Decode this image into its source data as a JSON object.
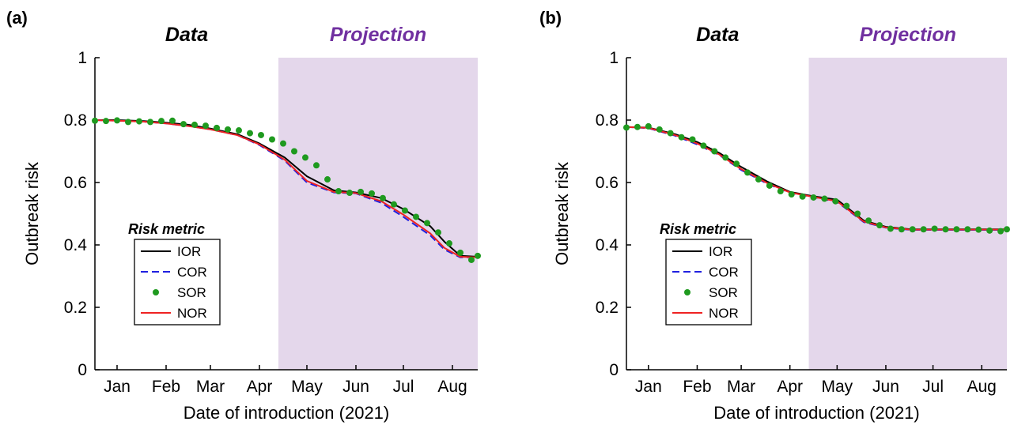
{
  "colors": {
    "IOR": "#000000",
    "COR": "#2020e0",
    "SOR": "#1f9a1f",
    "NOR": "#ee2222",
    "projection_shade": "#e4d7eb",
    "data_label": "#000000",
    "projection_label": "#7030a0"
  },
  "chart_data": [
    {
      "type": "line",
      "panel_label": "(a)",
      "region_labels": {
        "data": "Data",
        "projection": "Projection"
      },
      "projection_start": "2021-04-27",
      "xlabel": "Date of introduction (2021)",
      "ylabel": "Outbreak risk",
      "xlim": [
        "2021-01-01",
        "2021-08-31"
      ],
      "ylim": [
        0,
        1
      ],
      "x_ticks": [
        {
          "label": "Jan",
          "date": "2021-01-15"
        },
        {
          "label": "Feb",
          "date": "2021-02-15"
        },
        {
          "label": "Mar",
          "date": "2021-03-15"
        },
        {
          "label": "Apr",
          "date": "2021-04-15"
        },
        {
          "label": "May",
          "date": "2021-05-15"
        },
        {
          "label": "Jun",
          "date": "2021-06-15"
        },
        {
          "label": "Jul",
          "date": "2021-07-15"
        },
        {
          "label": "Aug",
          "date": "2021-08-15"
        }
      ],
      "y_ticks": [
        "0",
        "0.2",
        "0.4",
        "0.6",
        "0.8",
        "1"
      ],
      "y_tick_values": [
        0,
        0.2,
        0.4,
        0.6,
        0.8,
        1
      ],
      "legend": {
        "title": "Risk metric",
        "placement": "lower-left",
        "entries": [
          "IOR",
          "COR",
          "SOR",
          "NOR"
        ]
      },
      "series": [
        {
          "name": "IOR",
          "style": "solid",
          "x": [
            "2021-01-01",
            "2021-01-15",
            "2021-02-01",
            "2021-02-15",
            "2021-03-01",
            "2021-03-15",
            "2021-04-01",
            "2021-04-15",
            "2021-05-01",
            "2021-05-15",
            "2021-06-01",
            "2021-06-15",
            "2021-07-01",
            "2021-07-15",
            "2021-08-01",
            "2021-08-10",
            "2021-08-20",
            "2021-08-31"
          ],
          "y": [
            0.8,
            0.8,
            0.797,
            0.792,
            0.785,
            0.773,
            0.755,
            0.725,
            0.68,
            0.62,
            0.575,
            0.568,
            0.55,
            0.515,
            0.46,
            0.41,
            0.365,
            0.362
          ]
        },
        {
          "name": "COR",
          "style": "dashed",
          "x": [
            "2021-01-01",
            "2021-01-15",
            "2021-02-01",
            "2021-02-15",
            "2021-03-01",
            "2021-03-15",
            "2021-04-01",
            "2021-04-15",
            "2021-05-01",
            "2021-05-15",
            "2021-06-01",
            "2021-06-15",
            "2021-07-01",
            "2021-07-15",
            "2021-08-01",
            "2021-08-10",
            "2021-08-20",
            "2021-08-31"
          ],
          "y": [
            0.8,
            0.798,
            0.795,
            0.789,
            0.781,
            0.77,
            0.752,
            0.72,
            0.67,
            0.6,
            0.568,
            0.565,
            0.535,
            0.49,
            0.43,
            0.385,
            0.36,
            0.36
          ]
        },
        {
          "name": "SOR",
          "style": "markers",
          "x": [
            "2021-01-01",
            "2021-01-08",
            "2021-01-15",
            "2021-01-22",
            "2021-01-29",
            "2021-02-05",
            "2021-02-12",
            "2021-02-19",
            "2021-02-26",
            "2021-03-05",
            "2021-03-12",
            "2021-03-19",
            "2021-03-26",
            "2021-04-02",
            "2021-04-09",
            "2021-04-16",
            "2021-04-23",
            "2021-04-30",
            "2021-05-07",
            "2021-05-14",
            "2021-05-21",
            "2021-05-28",
            "2021-06-04",
            "2021-06-11",
            "2021-06-18",
            "2021-06-25",
            "2021-07-02",
            "2021-07-09",
            "2021-07-16",
            "2021-07-23",
            "2021-07-30",
            "2021-08-06",
            "2021-08-13",
            "2021-08-20",
            "2021-08-27",
            "2021-08-31"
          ],
          "y": [
            0.798,
            0.797,
            0.799,
            0.794,
            0.796,
            0.794,
            0.797,
            0.798,
            0.787,
            0.785,
            0.782,
            0.775,
            0.77,
            0.767,
            0.758,
            0.752,
            0.738,
            0.725,
            0.7,
            0.68,
            0.655,
            0.61,
            0.572,
            0.567,
            0.57,
            0.565,
            0.55,
            0.53,
            0.51,
            0.49,
            0.47,
            0.44,
            0.405,
            0.375,
            0.352,
            0.365
          ]
        },
        {
          "name": "NOR",
          "style": "solid",
          "x": [
            "2021-01-01",
            "2021-01-15",
            "2021-02-01",
            "2021-02-15",
            "2021-03-01",
            "2021-03-15",
            "2021-04-01",
            "2021-04-15",
            "2021-05-01",
            "2021-05-15",
            "2021-06-01",
            "2021-06-15",
            "2021-07-01",
            "2021-07-15",
            "2021-08-01",
            "2021-08-10",
            "2021-08-20",
            "2021-08-31"
          ],
          "y": [
            0.8,
            0.798,
            0.795,
            0.789,
            0.781,
            0.77,
            0.752,
            0.722,
            0.673,
            0.605,
            0.57,
            0.566,
            0.54,
            0.497,
            0.437,
            0.39,
            0.362,
            0.36
          ]
        }
      ]
    },
    {
      "type": "line",
      "panel_label": "(b)",
      "region_labels": {
        "data": "Data",
        "projection": "Projection"
      },
      "projection_start": "2021-04-27",
      "xlabel": "Date of introduction (2021)",
      "ylabel": "Outbreak risk",
      "xlim": [
        "2021-01-01",
        "2021-08-31"
      ],
      "ylim": [
        0,
        1
      ],
      "x_ticks": [
        {
          "label": "Jan",
          "date": "2021-01-15"
        },
        {
          "label": "Feb",
          "date": "2021-02-15"
        },
        {
          "label": "Mar",
          "date": "2021-03-15"
        },
        {
          "label": "Apr",
          "date": "2021-04-15"
        },
        {
          "label": "May",
          "date": "2021-05-15"
        },
        {
          "label": "Jun",
          "date": "2021-06-15"
        },
        {
          "label": "Jul",
          "date": "2021-07-15"
        },
        {
          "label": "Aug",
          "date": "2021-08-15"
        }
      ],
      "y_ticks": [
        "0",
        "0.2",
        "0.4",
        "0.6",
        "0.8",
        "1"
      ],
      "y_tick_values": [
        0,
        0.2,
        0.4,
        0.6,
        0.8,
        1
      ],
      "legend": {
        "title": "Risk metric",
        "placement": "lower-left",
        "entries": [
          "IOR",
          "COR",
          "SOR",
          "NOR"
        ]
      },
      "series": [
        {
          "name": "IOR",
          "style": "solid",
          "x": [
            "2021-01-01",
            "2021-01-15",
            "2021-02-01",
            "2021-02-15",
            "2021-03-01",
            "2021-03-15",
            "2021-04-01",
            "2021-04-15",
            "2021-05-01",
            "2021-05-15",
            "2021-06-01",
            "2021-06-15",
            "2021-07-01",
            "2021-07-15",
            "2021-08-01",
            "2021-08-15",
            "2021-08-31"
          ],
          "y": [
            0.778,
            0.776,
            0.755,
            0.73,
            0.695,
            0.65,
            0.602,
            0.57,
            0.555,
            0.545,
            0.478,
            0.458,
            0.45,
            0.45,
            0.45,
            0.45,
            0.45
          ]
        },
        {
          "name": "COR",
          "style": "dashed",
          "x": [
            "2021-01-01",
            "2021-01-15",
            "2021-02-01",
            "2021-02-15",
            "2021-03-01",
            "2021-03-15",
            "2021-04-01",
            "2021-04-15",
            "2021-05-01",
            "2021-05-15",
            "2021-06-01",
            "2021-06-15",
            "2021-07-01",
            "2021-07-15",
            "2021-08-01",
            "2021-08-15",
            "2021-08-31"
          ],
          "y": [
            0.778,
            0.774,
            0.75,
            0.722,
            0.688,
            0.64,
            0.595,
            0.567,
            0.552,
            0.538,
            0.473,
            0.455,
            0.448,
            0.448,
            0.448,
            0.448,
            0.448
          ]
        },
        {
          "name": "SOR",
          "style": "markers",
          "x": [
            "2021-01-01",
            "2021-01-08",
            "2021-01-15",
            "2021-01-22",
            "2021-01-29",
            "2021-02-05",
            "2021-02-12",
            "2021-02-19",
            "2021-02-26",
            "2021-03-05",
            "2021-03-12",
            "2021-03-19",
            "2021-03-26",
            "2021-04-02",
            "2021-04-09",
            "2021-04-16",
            "2021-04-23",
            "2021-04-30",
            "2021-05-07",
            "2021-05-14",
            "2021-05-21",
            "2021-05-28",
            "2021-06-04",
            "2021-06-11",
            "2021-06-18",
            "2021-06-25",
            "2021-07-02",
            "2021-07-09",
            "2021-07-16",
            "2021-07-23",
            "2021-07-30",
            "2021-08-06",
            "2021-08-13",
            "2021-08-20",
            "2021-08-27",
            "2021-08-31"
          ],
          "y": [
            0.776,
            0.778,
            0.78,
            0.77,
            0.758,
            0.745,
            0.738,
            0.718,
            0.7,
            0.68,
            0.66,
            0.632,
            0.61,
            0.59,
            0.572,
            0.562,
            0.555,
            0.552,
            0.548,
            0.54,
            0.525,
            0.5,
            0.478,
            0.463,
            0.452,
            0.45,
            0.45,
            0.45,
            0.452,
            0.45,
            0.45,
            0.45,
            0.449,
            0.446,
            0.444,
            0.45
          ]
        },
        {
          "name": "NOR",
          "style": "solid",
          "x": [
            "2021-01-01",
            "2021-01-15",
            "2021-02-01",
            "2021-02-15",
            "2021-03-01",
            "2021-03-15",
            "2021-04-01",
            "2021-04-15",
            "2021-05-01",
            "2021-05-15",
            "2021-06-01",
            "2021-06-15",
            "2021-07-01",
            "2021-07-15",
            "2021-08-01",
            "2021-08-15",
            "2021-08-31"
          ],
          "y": [
            0.778,
            0.775,
            0.752,
            0.725,
            0.69,
            0.643,
            0.597,
            0.568,
            0.553,
            0.54,
            0.475,
            0.456,
            0.449,
            0.449,
            0.449,
            0.449,
            0.449
          ]
        }
      ]
    }
  ]
}
